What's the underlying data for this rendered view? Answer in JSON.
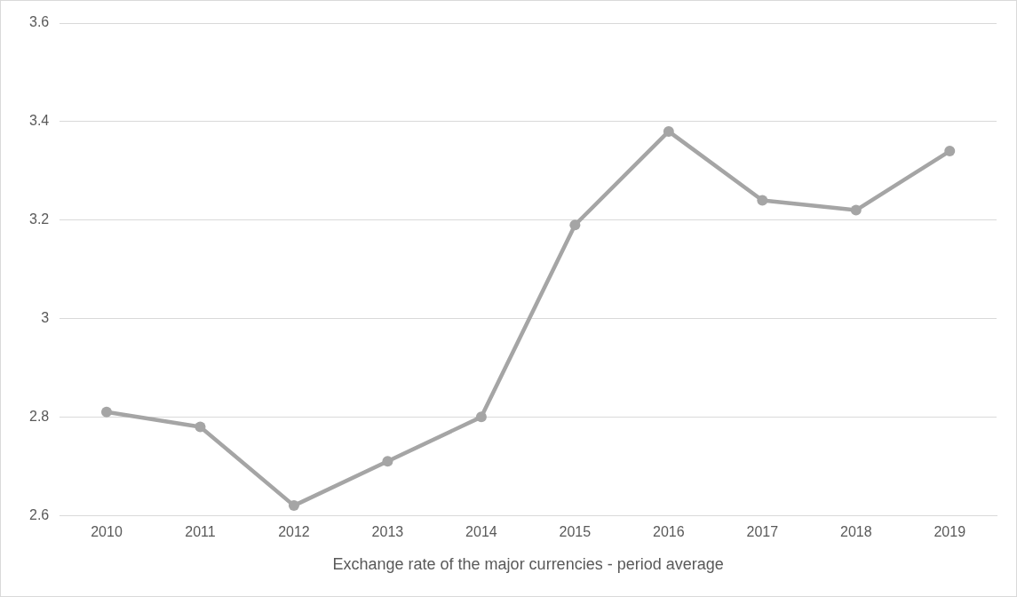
{
  "chart_data": {
    "type": "line",
    "xlabel": "Exchange rate of the major currencies - period average",
    "categories": [
      "2010",
      "2011",
      "2012",
      "2013",
      "2014",
      "2015",
      "2016",
      "2017",
      "2018",
      "2019"
    ],
    "series": [
      {
        "color": "#a5a5a5",
        "values": [
          2.81,
          2.78,
          2.62,
          2.71,
          2.8,
          3.19,
          3.38,
          3.24,
          3.22,
          3.34
        ]
      }
    ],
    "ylim": [
      2.6,
      3.6
    ],
    "yticks": [
      {
        "value": 2.6,
        "label": "2.6"
      },
      {
        "value": 2.8,
        "label": "2.8"
      },
      {
        "value": 3,
        "label": "3"
      },
      {
        "value": 3.2,
        "label": "3.2"
      },
      {
        "value": 3.4,
        "label": "3.4"
      },
      {
        "value": 3.6,
        "label": "3.6"
      }
    ],
    "grid": "y",
    "legend": false,
    "marker": "circle",
    "line_style": "solid"
  }
}
